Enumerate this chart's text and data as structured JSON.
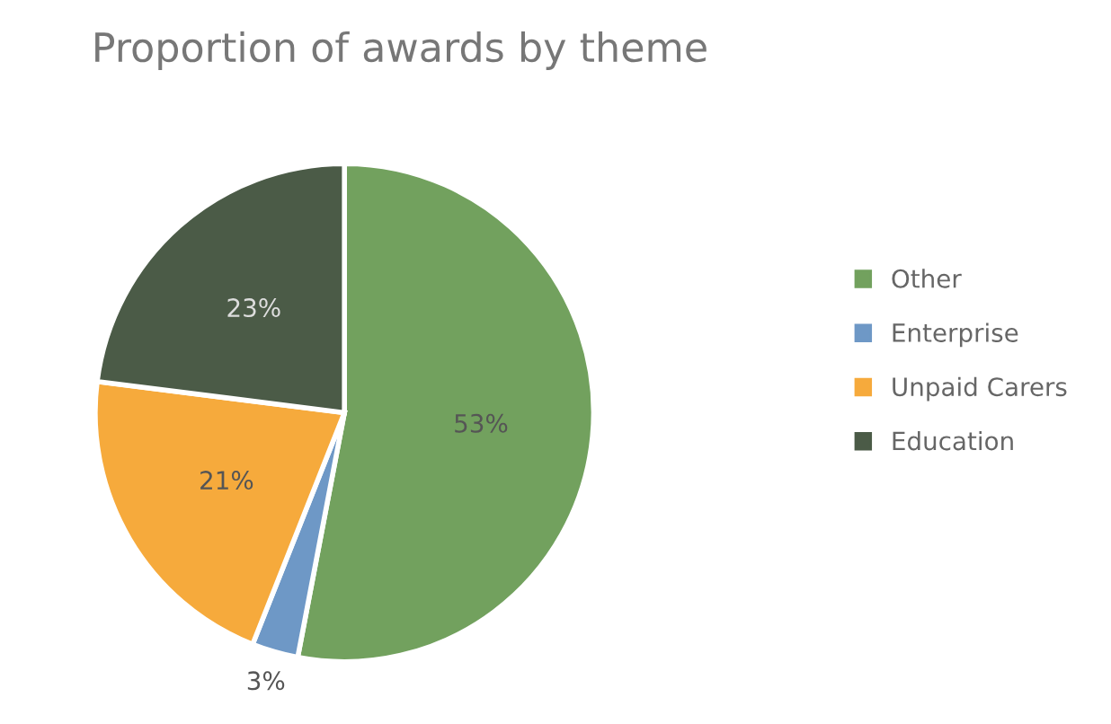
{
  "chart_data": {
    "type": "pie",
    "title": "Proportion of awards by theme",
    "categories": [
      "Other",
      "Enterprise",
      "Unpaid Carers",
      "Education"
    ],
    "values": [
      53,
      3,
      21,
      23
    ],
    "colors": [
      "#72a15e",
      "#6e98c6",
      "#f6aa3c",
      "#4b5b47"
    ],
    "value_labels": [
      "53%",
      "3%",
      "21%",
      "23%"
    ],
    "legend": "right"
  }
}
